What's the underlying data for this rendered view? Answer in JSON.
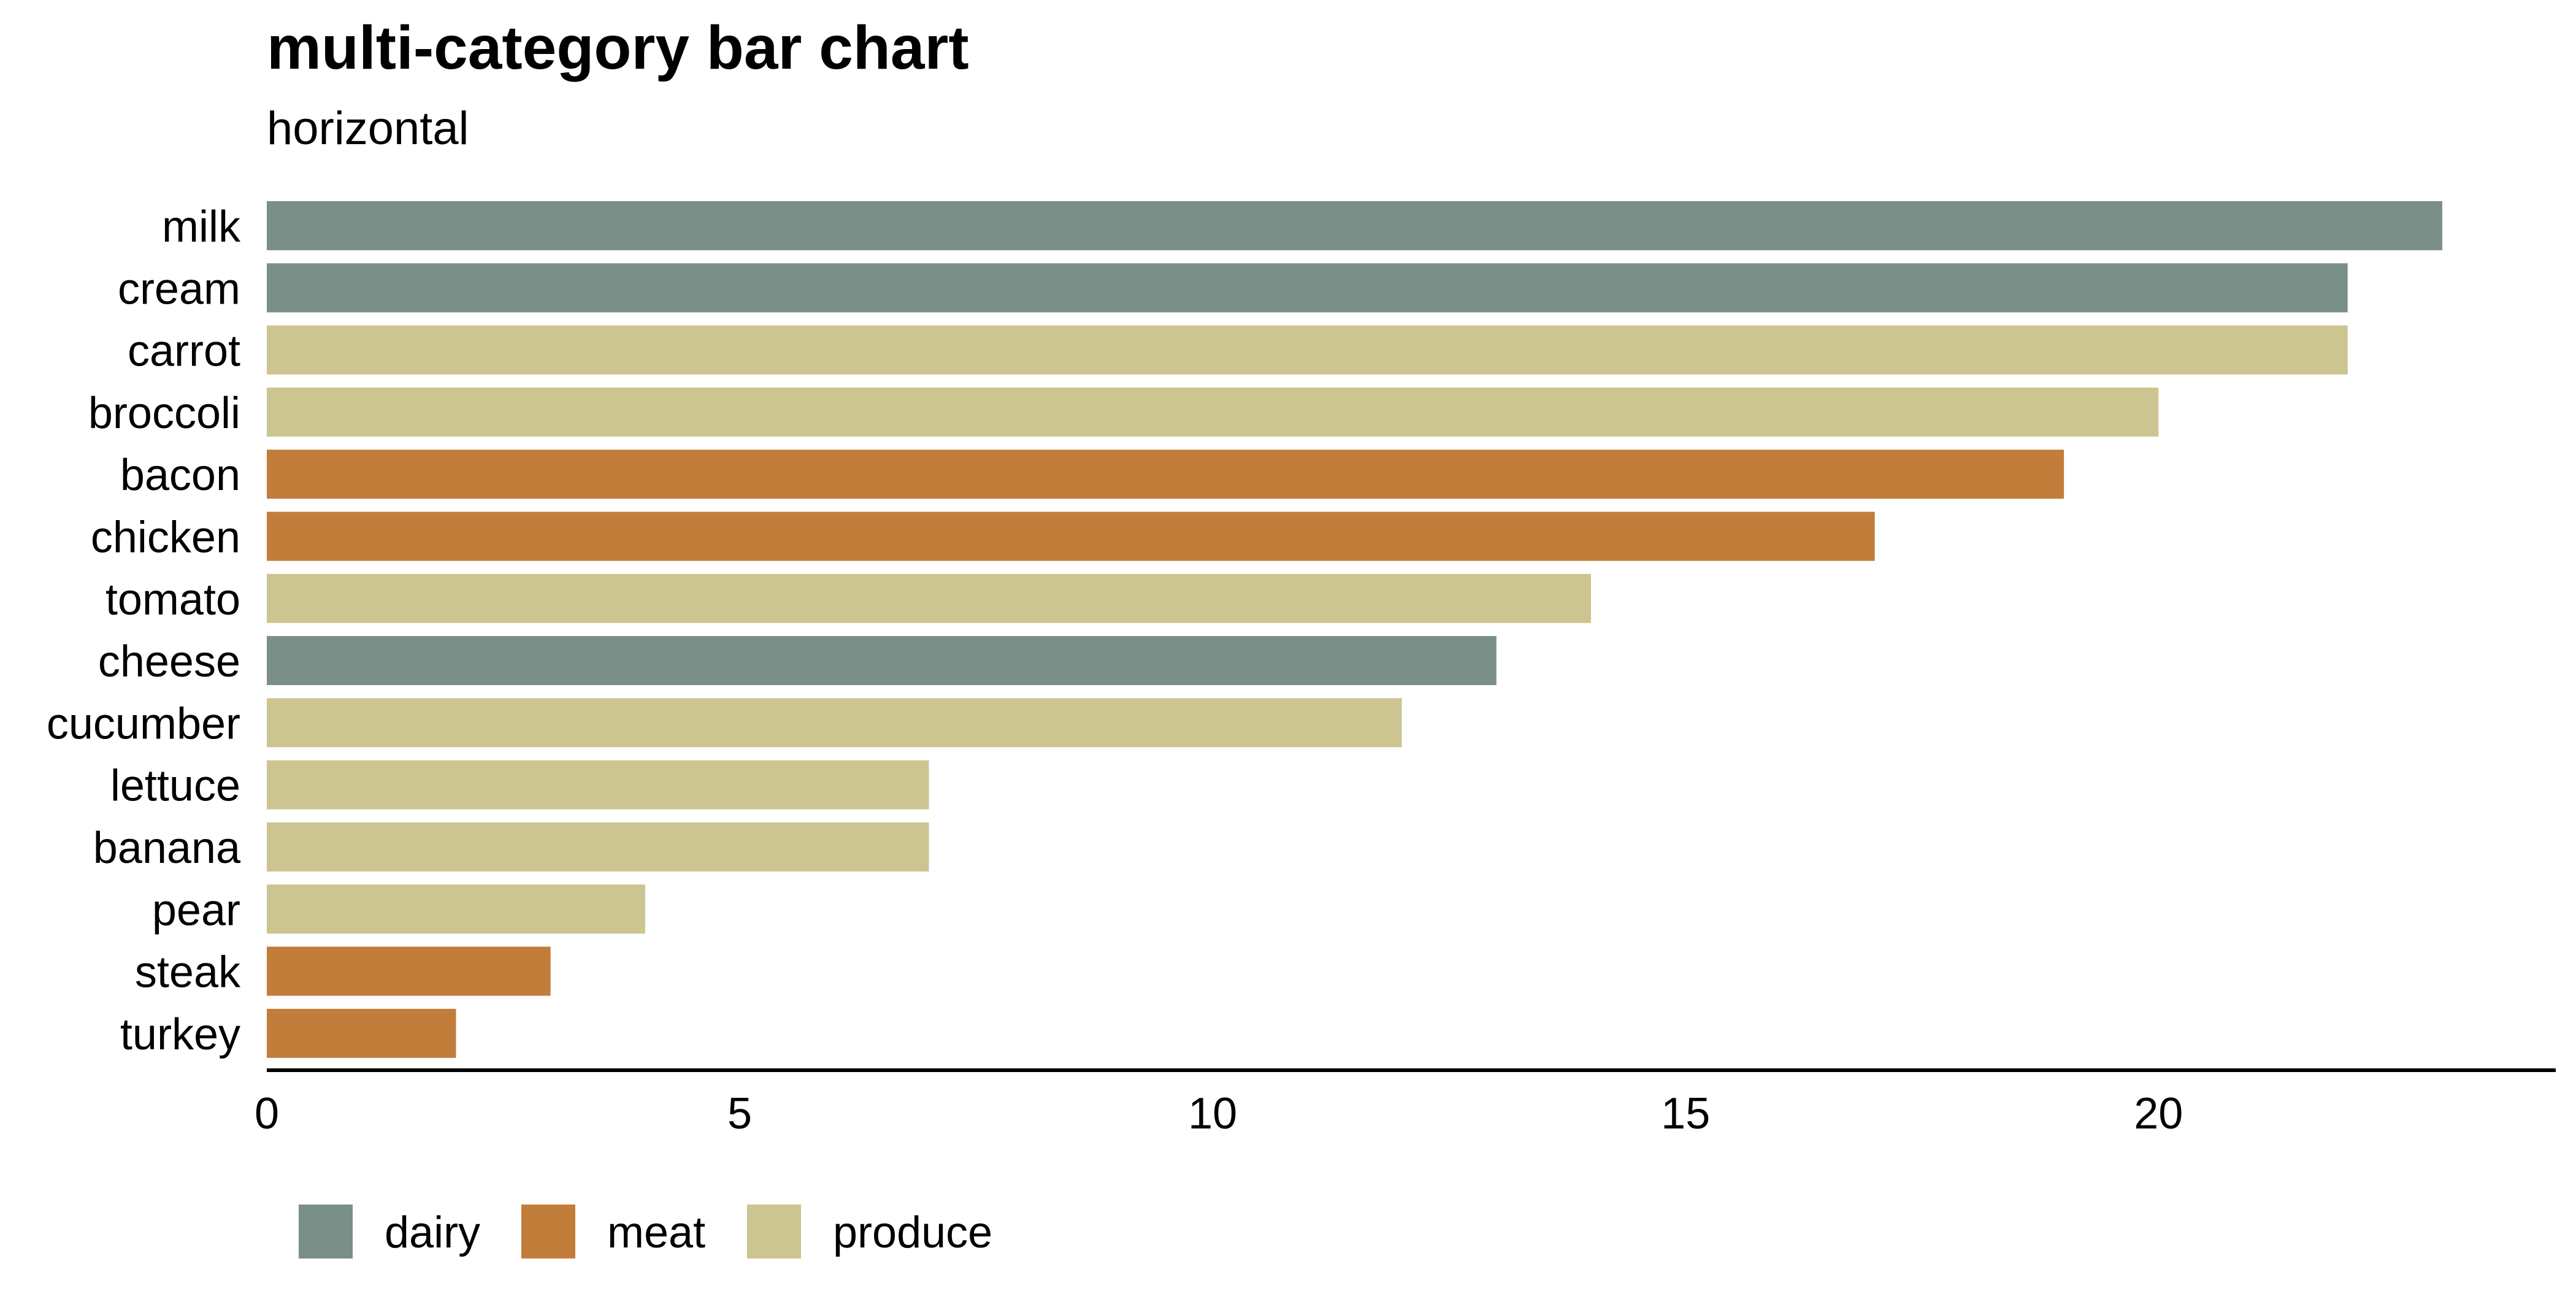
{
  "chart_data": {
    "type": "bar",
    "orientation": "horizontal",
    "title": "multi-category bar chart",
    "subtitle": "horizontal",
    "xlabel": "",
    "ylabel": "",
    "xlim": [
      0,
      24.2
    ],
    "xticks": [
      0,
      5,
      10,
      15,
      20
    ],
    "grid": false,
    "legend_position": "bottom-left",
    "categories": [
      "milk",
      "cream",
      "carrot",
      "broccoli",
      "bacon",
      "chicken",
      "tomato",
      "cheese",
      "cucumber",
      "lettuce",
      "banana",
      "pear",
      "steak",
      "turkey"
    ],
    "values": [
      23,
      22,
      22,
      20,
      19,
      17,
      14,
      13,
      12,
      7,
      7,
      4,
      3,
      2
    ],
    "groups": [
      "dairy",
      "dairy",
      "produce",
      "produce",
      "meat",
      "meat",
      "produce",
      "dairy",
      "produce",
      "produce",
      "produce",
      "produce",
      "meat",
      "meat"
    ],
    "legend": [
      {
        "name": "dairy",
        "color": "#7a8f87"
      },
      {
        "name": "meat",
        "color": "#c27d3b"
      },
      {
        "name": "produce",
        "color": "#ccc592"
      }
    ]
  }
}
